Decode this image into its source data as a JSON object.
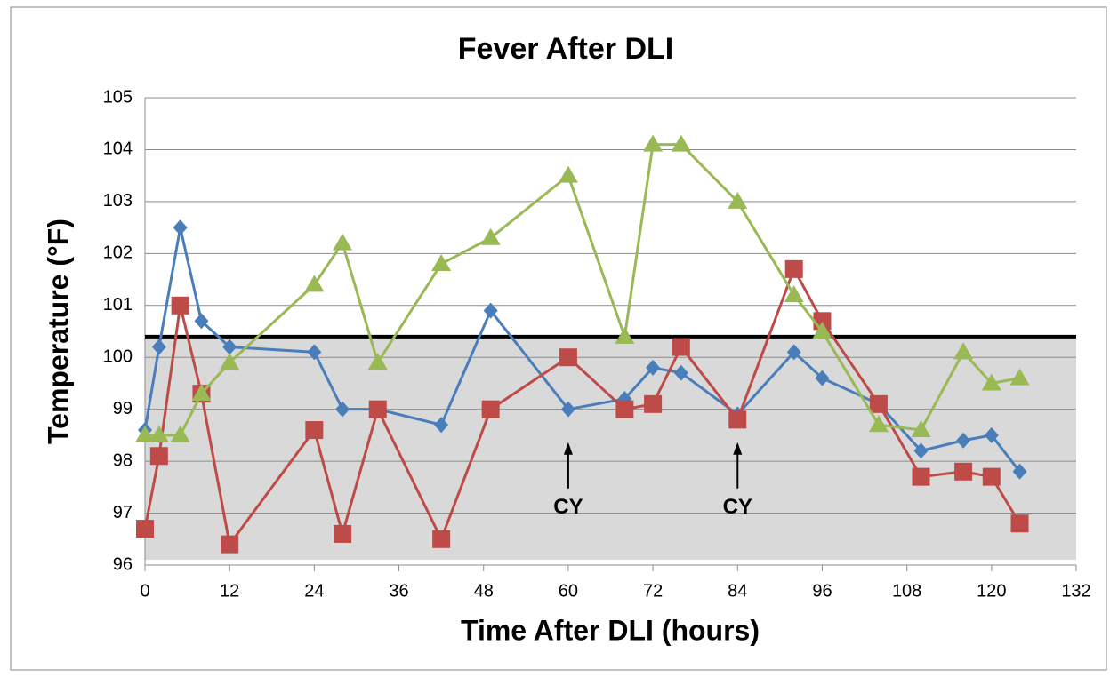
{
  "chart_data": {
    "type": "line",
    "title": "Fever After DLI",
    "x_label": "Time After DLI (hours)",
    "y_label": "Temperature (°F)",
    "xlim": [
      0,
      132
    ],
    "xticks": [
      0,
      12,
      24,
      36,
      48,
      60,
      72,
      84,
      96,
      108,
      120,
      132
    ],
    "ylim": [
      96,
      105
    ],
    "yticks": [
      96,
      97,
      98,
      99,
      100,
      101,
      102,
      103,
      104,
      105
    ],
    "grid": true,
    "threshold": 100.4,
    "series": [
      {
        "color": "#4a7ebb",
        "marker": "diamond",
        "x": [
          0,
          2,
          5,
          8,
          12,
          24,
          28,
          33,
          42,
          49,
          60,
          68,
          72,
          76,
          84,
          92,
          96,
          104,
          110,
          116,
          120,
          124
        ],
        "values": [
          98.6,
          100.2,
          102.5,
          100.7,
          100.2,
          100.1,
          99.0,
          99.0,
          98.7,
          100.9,
          99.0,
          99.2,
          99.8,
          99.7,
          98.9,
          100.1,
          99.6,
          99.1,
          98.2,
          98.4,
          98.5,
          97.8
        ]
      },
      {
        "color": "#be4b48",
        "marker": "square",
        "x": [
          0,
          2,
          5,
          8,
          12,
          24,
          28,
          33,
          42,
          49,
          60,
          68,
          72,
          76,
          84,
          92,
          96,
          104,
          110,
          116,
          120,
          124
        ],
        "values": [
          96.7,
          98.1,
          101.0,
          99.3,
          96.4,
          98.6,
          96.6,
          99.0,
          96.5,
          99.0,
          100.0,
          99.0,
          99.1,
          100.2,
          98.8,
          101.7,
          100.7,
          99.1,
          97.7,
          97.8,
          97.7,
          96.8
        ]
      },
      {
        "color": "#98b954",
        "marker": "triangle",
        "x": [
          0,
          2,
          5,
          8,
          12,
          24,
          28,
          33,
          42,
          49,
          60,
          68,
          72,
          76,
          84,
          92,
          96,
          104,
          110,
          116,
          120,
          124
        ],
        "values": [
          98.5,
          98.5,
          98.5,
          99.3,
          99.9,
          101.4,
          102.2,
          99.9,
          101.8,
          102.3,
          103.5,
          100.4,
          104.1,
          104.1,
          103.0,
          101.2,
          100.5,
          98.7,
          98.6,
          100.1,
          99.5,
          99.6
        ]
      }
    ],
    "annotations": [
      {
        "text": "CY",
        "x": 60,
        "y": 97.1
      },
      {
        "text": "CY",
        "x": 84,
        "y": 97.1
      }
    ]
  }
}
